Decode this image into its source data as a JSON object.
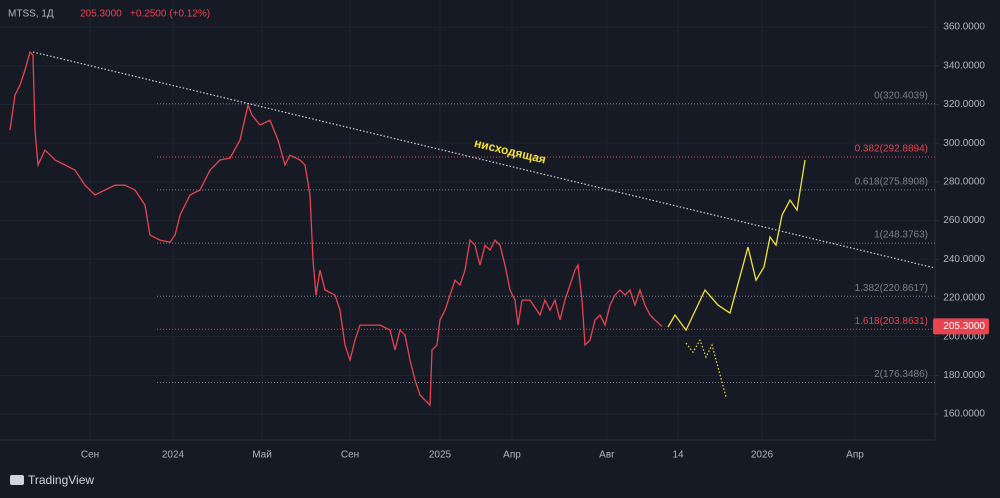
{
  "chart_data": {
    "type": "line",
    "symbol": "MTSS, 1Д",
    "change": "+0.2500 (+0.12%)",
    "last_price": {
      "value": 205.3,
      "label": "205.3000"
    },
    "footer": "TradingView",
    "xlim": [
      0,
      187
    ],
    "xticks": [
      {
        "value": 18,
        "label": "Сен"
      },
      {
        "value": 34.6,
        "label": "2024"
      },
      {
        "value": 52.4,
        "label": "Май"
      },
      {
        "value": 70,
        "label": "Сен"
      },
      {
        "value": 88,
        "label": "2025"
      },
      {
        "value": 102.4,
        "label": "Апр"
      },
      {
        "value": 121.4,
        "label": "Авг"
      },
      {
        "value": 135.6,
        "label": "14"
      },
      {
        "value": 152.4,
        "label": "2026"
      },
      {
        "value": 171,
        "label": "Апр"
      }
    ],
    "ylim": [
      146.6,
      374
    ],
    "yticks": [
      {
        "value": 160,
        "label": "160.0000"
      },
      {
        "value": 180,
        "label": "180.0000"
      },
      {
        "value": 200,
        "label": "200.0000"
      },
      {
        "value": 220,
        "label": "220.0000"
      },
      {
        "value": 240,
        "label": "240.0000"
      },
      {
        "value": 260,
        "label": "260.0000"
      },
      {
        "value": 280,
        "label": "280.0000"
      },
      {
        "value": 300,
        "label": "300.0000"
      },
      {
        "value": 320,
        "label": "320.0000"
      },
      {
        "value": 340,
        "label": "340.0000"
      },
      {
        "value": 360,
        "label": "360.0000"
      }
    ],
    "grid": true,
    "series": [
      {
        "name": "MTSS",
        "color": "#e8444f",
        "style": "solid",
        "x": [
          2,
          3,
          4,
          5,
          6,
          6.6,
          7,
          7.6,
          9,
          11,
          13,
          15,
          17,
          19,
          21,
          23,
          25,
          27,
          29,
          30,
          32,
          34,
          35,
          36,
          38,
          40,
          42,
          44,
          46,
          48,
          49.6,
          50.4,
          52,
          54,
          55.6,
          57,
          58,
          60,
          61,
          62,
          62.6,
          63.2,
          64,
          65,
          67,
          68,
          69,
          70,
          71,
          72,
          74,
          76,
          78,
          79,
          80,
          81,
          82,
          83,
          84,
          85,
          86,
          86.4,
          87.4,
          88,
          89,
          90,
          91,
          92,
          93,
          94,
          95,
          96,
          97,
          98,
          99,
          100,
          101,
          102,
          103,
          103.6,
          104.4,
          106,
          108,
          109,
          110,
          111,
          112,
          113,
          114,
          115,
          115.6,
          116.4,
          117,
          118,
          119,
          120,
          121,
          122,
          123,
          124,
          125,
          126,
          127,
          128,
          129,
          130,
          131,
          132.4
        ],
        "values": [
          306.8,
          324.9,
          330.0,
          337.8,
          347.1,
          345.5,
          306.8,
          288.7,
          296.4,
          291.3,
          288.7,
          286.1,
          278.3,
          273.2,
          275.8,
          278.3,
          278.3,
          275.8,
          268.0,
          252.5,
          249.9,
          248.9,
          252.5,
          262.8,
          273.2,
          275.8,
          286.1,
          291.3,
          292.3,
          301.6,
          319.7,
          314.5,
          309.4,
          311.9,
          301.6,
          288.7,
          293.8,
          291.3,
          288.7,
          273.2,
          239.6,
          221.5,
          234.4,
          224.1,
          221.5,
          213.7,
          195.7,
          187.9,
          198.2,
          206.0,
          206.0,
          206.0,
          203.4,
          193.1,
          203.4,
          200.8,
          187.9,
          177.6,
          169.8,
          167.2,
          164.6,
          193.1,
          195.7,
          208.6,
          213.7,
          221.5,
          229.2,
          226.7,
          234.4,
          249.9,
          247.3,
          237.0,
          247.3,
          244.8,
          249.9,
          247.3,
          237.0,
          224.1,
          218.9,
          206.0,
          218.9,
          218.9,
          211.2,
          218.9,
          213.7,
          218.9,
          208.6,
          218.9,
          226.7,
          234.4,
          237.0,
          218.9,
          195.7,
          198.2,
          208.6,
          211.2,
          206.0,
          216.3,
          221.5,
          224.1,
          221.5,
          224.1,
          216.3,
          224.1,
          216.3,
          211.2,
          208.6,
          205.3
        ]
      },
      {
        "color": "#f2e23a",
        "style": "solid",
        "x": [
          133.6,
          135,
          137.2,
          141,
          143.6,
          146,
          149.6,
          151.2,
          152.8,
          154,
          155.2,
          156.4,
          158,
          159.4,
          161
        ],
        "values": [
          205.0,
          211.2,
          203.4,
          224.1,
          216.3,
          212.2,
          246.3,
          229.2,
          236.0,
          251.5,
          247.3,
          262.8,
          270.6,
          265.4,
          291.3
        ]
      },
      {
        "color": "#f2e23a",
        "style": "dotted",
        "x": [
          137.2,
          138.6,
          140,
          141.2,
          142.4,
          145.2
        ],
        "values": [
          196.7,
          192.0,
          198.2,
          189.5,
          195.7,
          168.8
        ]
      },
      {
        "color": "#cfd2da",
        "style": "dotted",
        "x": [
          6.6,
          187
        ],
        "values": [
          347.1,
          235.5
        ]
      }
    ],
    "trend_label": "нисходящая",
    "fib_levels": [
      {
        "label": "0(320.4039)",
        "value": 320.4039,
        "color": "#7d808a"
      },
      {
        "label": "0.382(292.8894)",
        "value": 292.8894,
        "color": "#e8444f"
      },
      {
        "label": "0.618(275.8908)",
        "value": 275.8908,
        "color": "#7d808a"
      },
      {
        "label": "1(248.3763)",
        "value": 248.3763,
        "color": "#7d808a"
      },
      {
        "label": "1.382(220.8617)",
        "value": 220.8617,
        "color": "#7d808a"
      },
      {
        "label": "1.618(203.8631)",
        "value": 203.8631,
        "color": "#e8444f"
      },
      {
        "label": "2(176.3486)",
        "value": 176.3486,
        "color": "#7d808a"
      }
    ]
  }
}
